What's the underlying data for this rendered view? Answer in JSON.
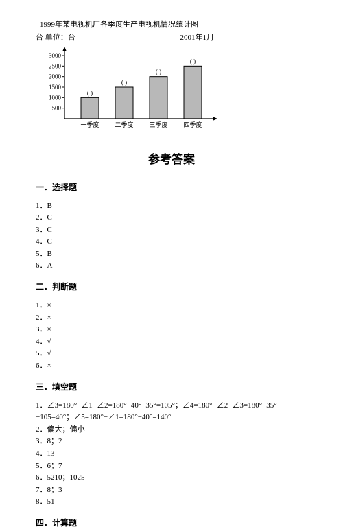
{
  "chart": {
    "title": "1999年某电视机厂各季度生产电视机情况统计图",
    "unit_label": "台 单位：台",
    "date_label": "2001年1月",
    "type": "bar",
    "y_ticks": [
      500,
      1000,
      1500,
      2000,
      2500,
      3000
    ],
    "categories": [
      "一季度",
      "二季度",
      "三季度",
      "四季度"
    ],
    "values": [
      1000,
      1500,
      2000,
      2500
    ],
    "bracket_label": "(    )",
    "bar_color": "#b8b8b8",
    "bar_border": "#000000",
    "axis_color": "#000000",
    "ytick_color": "#000000",
    "background": "#ffffff",
    "font_size": 9
  },
  "main_heading": "参考答案",
  "sections": {
    "choice": {
      "heading": "一．选择题",
      "items": [
        "1．B",
        "2．C",
        "3．C",
        "4．C",
        "5．B",
        "6．A"
      ]
    },
    "judge": {
      "heading": "二．判断题",
      "items": [
        "1．×",
        "2．×",
        "3．×",
        "4．√",
        "5．√",
        "6．×"
      ]
    },
    "fill": {
      "heading": "三．填空题",
      "items": [
        "1．∠3=180°−∠1−∠2=180°−40°−35°=105°；∠4=180°−∠2−∠3=180°−35°−105=40°；∠5=180°−∠1=180°−40°=140°",
        "2．偏大；偏小",
        "3．8；2",
        "4．13",
        "5．6；7",
        "6．5210；1025",
        "7．8；3",
        "8．51"
      ]
    },
    "calc": {
      "heading": "四．计算题"
    }
  }
}
